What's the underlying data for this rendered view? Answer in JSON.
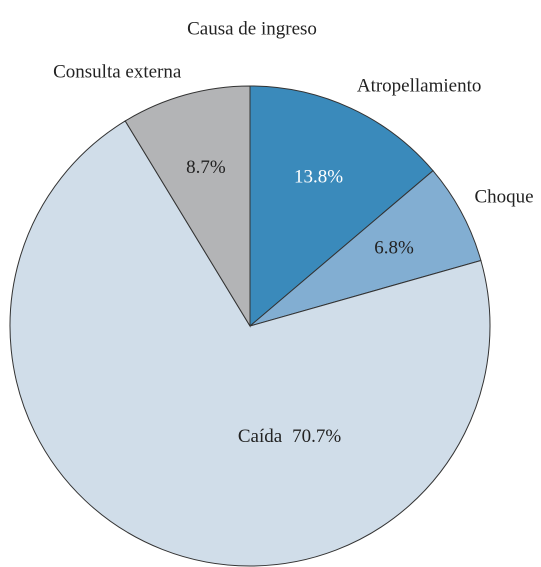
{
  "chart_data": {
    "type": "pie",
    "title": "Causa de ingreso",
    "categories": [
      "Atropellamiento",
      "Choque",
      "Caída",
      "Consulta externa"
    ],
    "values": [
      13.8,
      6.8,
      70.7,
      8.7
    ],
    "value_labels": [
      "13.8%",
      "6.8%",
      "70.7%",
      "8.7%"
    ],
    "colors": [
      "#3a8abb",
      "#82aed2",
      "#d0dde9",
      "#b3b4b6"
    ]
  }
}
